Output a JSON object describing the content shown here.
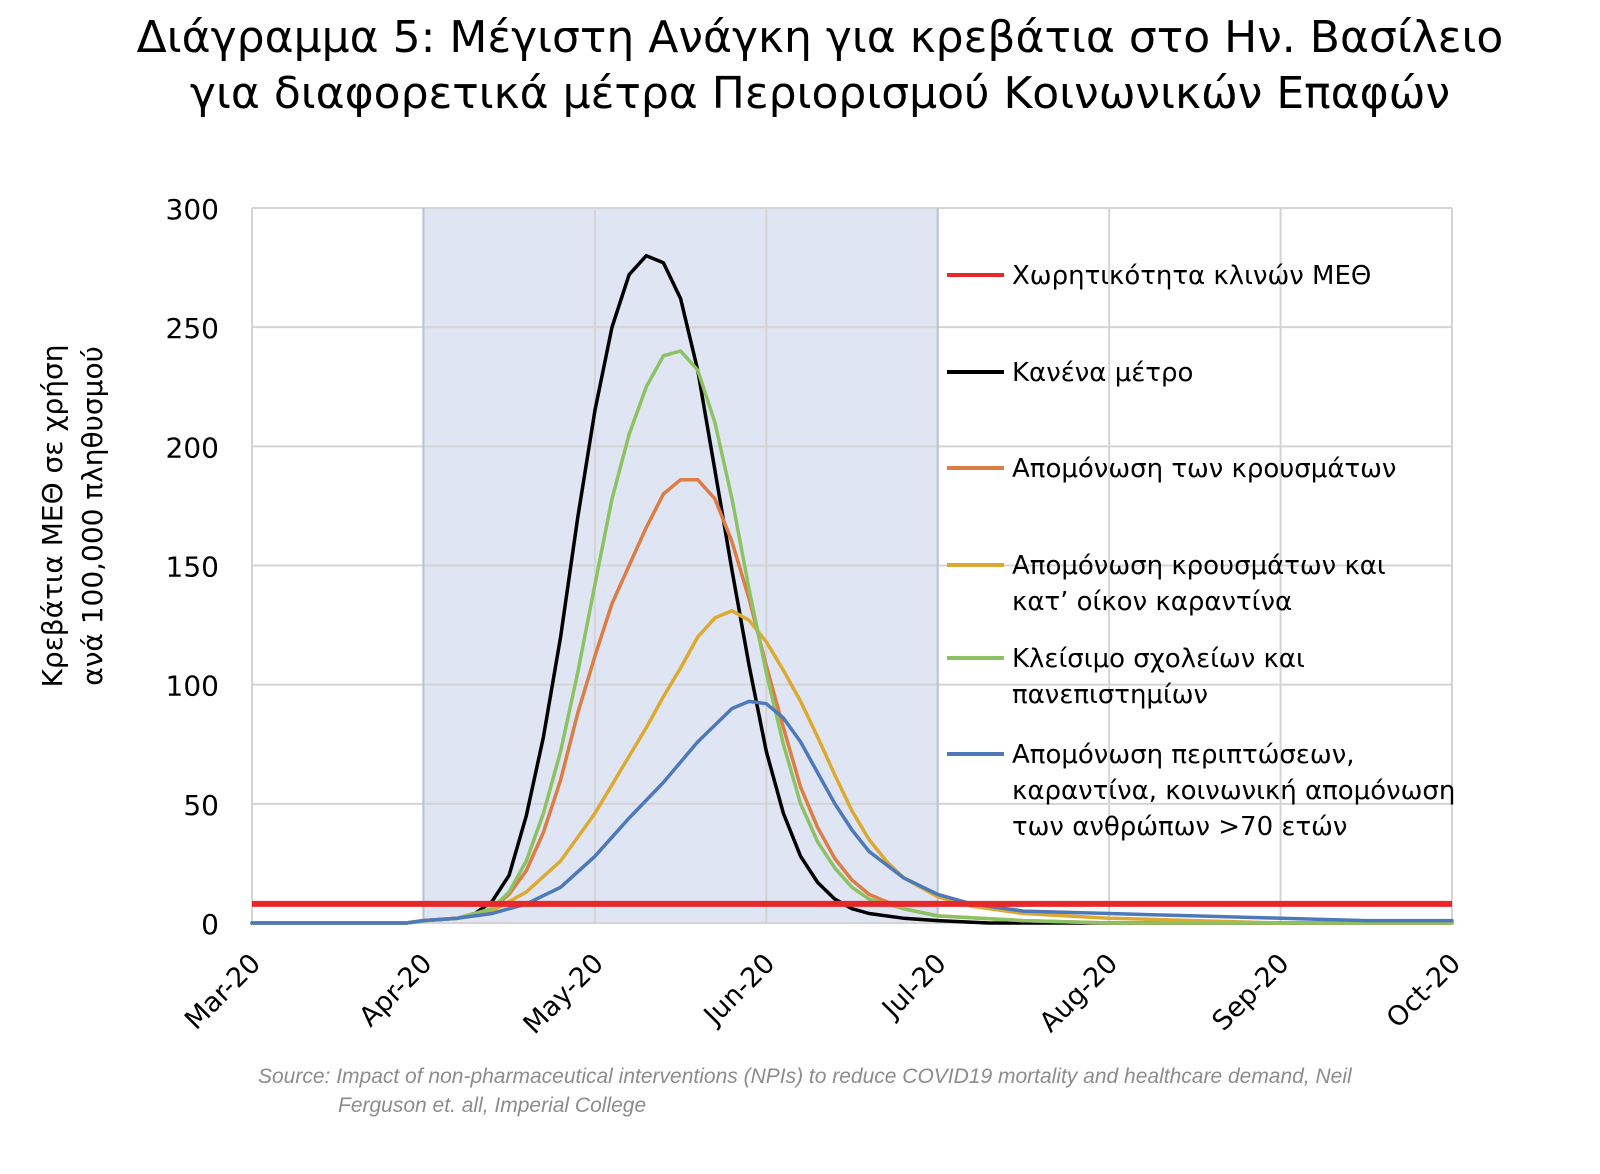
{
  "title_line1": "Διάγραμμα 5: Μέγιστη Ανάγκη για κρεβάτια στο Ην. Βασίλειο",
  "title_line2": "για διαφορετικά μέτρα Περιορισμού Κοινωνικών Επαφών",
  "source_line1": "Source: Impact of non-pharmaceutical interventions (NPIs) to reduce COVID19 mortality and healthcare demand, Neil",
  "source_line2": "Ferguson et. all, Imperial College",
  "chart_data": {
    "type": "line",
    "ylabel_line1": "Κρεβάτια ΜΕΘ σε χρήση",
    "ylabel_line2": "ανά 100,000 πληθυσμού",
    "ylim": [
      0,
      300
    ],
    "yticks": [
      0,
      50,
      100,
      150,
      200,
      250,
      300
    ],
    "xticks": [
      "Mar-20",
      "Apr-20",
      "May-20",
      "Jun-20",
      "Jul-20",
      "Aug-20",
      "Sep-20",
      "Oct-20"
    ],
    "x_range_months": [
      0,
      7
    ],
    "shaded_period": [
      "Apr-20",
      "Jul-20"
    ],
    "grid": true,
    "legend_position": "right",
    "capacity": {
      "name": "Χωρητικότητα κλινών ΜΕΘ",
      "value": 8,
      "color": "#e8272a"
    },
    "series": [
      {
        "name": "Κανένα μέτρο",
        "color": "#000000",
        "points": [
          [
            0,
            0
          ],
          [
            0.9,
            0
          ],
          [
            1.0,
            1
          ],
          [
            1.2,
            2
          ],
          [
            1.3,
            4
          ],
          [
            1.4,
            9
          ],
          [
            1.5,
            20
          ],
          [
            1.6,
            45
          ],
          [
            1.7,
            78
          ],
          [
            1.8,
            120
          ],
          [
            1.9,
            170
          ],
          [
            2.0,
            215
          ],
          [
            2.1,
            250
          ],
          [
            2.2,
            272
          ],
          [
            2.3,
            280
          ],
          [
            2.4,
            277
          ],
          [
            2.5,
            262
          ],
          [
            2.6,
            232
          ],
          [
            2.7,
            190
          ],
          [
            2.8,
            148
          ],
          [
            2.9,
            108
          ],
          [
            3.0,
            72
          ],
          [
            3.1,
            46
          ],
          [
            3.2,
            28
          ],
          [
            3.3,
            17
          ],
          [
            3.4,
            10
          ],
          [
            3.5,
            6
          ],
          [
            3.6,
            4
          ],
          [
            3.8,
            2
          ],
          [
            4.0,
            1
          ],
          [
            4.3,
            0
          ],
          [
            7.0,
            0
          ]
        ]
      },
      {
        "name": "Απομόνωση των κρουσμάτων",
        "color": "#dd7d45",
        "points": [
          [
            0,
            0
          ],
          [
            0.9,
            0
          ],
          [
            1.0,
            1
          ],
          [
            1.2,
            2
          ],
          [
            1.4,
            6
          ],
          [
            1.5,
            12
          ],
          [
            1.6,
            22
          ],
          [
            1.7,
            38
          ],
          [
            1.8,
            60
          ],
          [
            1.9,
            88
          ],
          [
            2.0,
            112
          ],
          [
            2.1,
            134
          ],
          [
            2.2,
            150
          ],
          [
            2.3,
            166
          ],
          [
            2.4,
            180
          ],
          [
            2.5,
            186
          ],
          [
            2.6,
            186
          ],
          [
            2.7,
            178
          ],
          [
            2.8,
            160
          ],
          [
            2.9,
            136
          ],
          [
            3.0,
            108
          ],
          [
            3.1,
            82
          ],
          [
            3.2,
            57
          ],
          [
            3.3,
            40
          ],
          [
            3.4,
            27
          ],
          [
            3.5,
            18
          ],
          [
            3.6,
            12
          ],
          [
            3.8,
            6
          ],
          [
            4.0,
            3
          ],
          [
            4.5,
            1
          ],
          [
            5.0,
            0
          ],
          [
            7.0,
            0
          ]
        ]
      },
      {
        "name": "Απομόνωση κρουσμάτων και\nκατ’ οίκον καραντίνα",
        "color": "#dcaa32",
        "points": [
          [
            0,
            0
          ],
          [
            0.9,
            0
          ],
          [
            1.0,
            1
          ],
          [
            1.2,
            2
          ],
          [
            1.4,
            5
          ],
          [
            1.6,
            13
          ],
          [
            1.8,
            26
          ],
          [
            2.0,
            46
          ],
          [
            2.1,
            58
          ],
          [
            2.2,
            70
          ],
          [
            2.3,
            82
          ],
          [
            2.4,
            95
          ],
          [
            2.5,
            107
          ],
          [
            2.6,
            120
          ],
          [
            2.7,
            128
          ],
          [
            2.8,
            131
          ],
          [
            2.9,
            127
          ],
          [
            3.0,
            118
          ],
          [
            3.1,
            106
          ],
          [
            3.2,
            93
          ],
          [
            3.3,
            78
          ],
          [
            3.4,
            62
          ],
          [
            3.5,
            47
          ],
          [
            3.6,
            35
          ],
          [
            3.7,
            26
          ],
          [
            3.8,
            19
          ],
          [
            4.0,
            11
          ],
          [
            4.2,
            7
          ],
          [
            4.5,
            4
          ],
          [
            5.0,
            2
          ],
          [
            5.5,
            1
          ],
          [
            6.0,
            0
          ],
          [
            7.0,
            0
          ]
        ]
      },
      {
        "name": "Κλείσιμο σχολείων και\nπανεπιστημίων",
        "color": "#8cc264",
        "points": [
          [
            0,
            0
          ],
          [
            0.9,
            0
          ],
          [
            1.0,
            1
          ],
          [
            1.2,
            2
          ],
          [
            1.4,
            6
          ],
          [
            1.5,
            13
          ],
          [
            1.6,
            26
          ],
          [
            1.7,
            46
          ],
          [
            1.8,
            72
          ],
          [
            1.9,
            105
          ],
          [
            2.0,
            142
          ],
          [
            2.1,
            178
          ],
          [
            2.2,
            205
          ],
          [
            2.3,
            225
          ],
          [
            2.4,
            238
          ],
          [
            2.5,
            240
          ],
          [
            2.6,
            232
          ],
          [
            2.7,
            210
          ],
          [
            2.8,
            178
          ],
          [
            2.9,
            140
          ],
          [
            3.0,
            105
          ],
          [
            3.1,
            75
          ],
          [
            3.2,
            50
          ],
          [
            3.3,
            34
          ],
          [
            3.4,
            23
          ],
          [
            3.5,
            15
          ],
          [
            3.6,
            10
          ],
          [
            3.8,
            6
          ],
          [
            4.0,
            3
          ],
          [
            4.5,
            1
          ],
          [
            5.0,
            0
          ],
          [
            7.0,
            0
          ]
        ]
      },
      {
        "name": "Απομόνωση περιπτώσεων,\nκαραντίνα, κοινωνική απομόνωση\nτων ανθρώπων >70 ετών",
        "color": "#4d79b8",
        "points": [
          [
            0,
            0
          ],
          [
            0.9,
            0
          ],
          [
            1.0,
            1
          ],
          [
            1.2,
            2
          ],
          [
            1.4,
            4
          ],
          [
            1.6,
            8
          ],
          [
            1.8,
            15
          ],
          [
            2.0,
            28
          ],
          [
            2.2,
            44
          ],
          [
            2.4,
            59
          ],
          [
            2.6,
            76
          ],
          [
            2.8,
            90
          ],
          [
            2.9,
            93
          ],
          [
            3.0,
            92
          ],
          [
            3.1,
            86
          ],
          [
            3.2,
            76
          ],
          [
            3.3,
            63
          ],
          [
            3.4,
            50
          ],
          [
            3.5,
            39
          ],
          [
            3.6,
            30
          ],
          [
            3.8,
            19
          ],
          [
            4.0,
            12
          ],
          [
            4.2,
            8
          ],
          [
            4.5,
            5
          ],
          [
            5.0,
            4
          ],
          [
            5.5,
            3
          ],
          [
            6.0,
            2
          ],
          [
            6.5,
            1
          ],
          [
            7.0,
            1
          ]
        ]
      }
    ]
  }
}
